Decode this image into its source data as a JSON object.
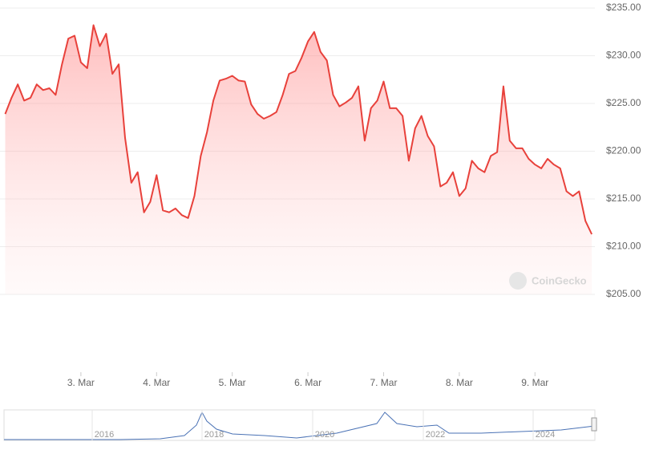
{
  "chart_data": {
    "type": "line",
    "x": [
      0,
      2,
      4,
      6,
      8,
      10,
      12,
      14,
      16,
      18,
      20,
      22,
      24,
      26,
      28,
      30,
      32,
      34,
      36,
      38,
      40,
      42,
      44,
      46,
      48,
      50,
      52,
      54,
      56,
      58,
      60,
      62,
      64,
      66,
      68,
      70,
      72,
      74,
      76,
      78,
      80,
      82,
      84,
      86,
      88,
      90,
      92,
      94,
      96,
      98,
      100,
      102,
      104,
      106,
      108,
      110,
      112,
      114,
      116,
      118,
      120,
      122,
      124,
      126,
      128,
      130,
      132,
      134,
      136,
      138,
      140,
      142,
      144,
      146,
      148,
      150,
      152,
      154,
      156,
      158,
      160,
      162,
      164,
      166,
      168,
      170,
      172,
      174,
      176,
      178,
      180,
      182,
      184,
      186
    ],
    "series": [
      {
        "color": "#e8413b",
        "values": [
          223.9,
          225.6,
          227.0,
          225.3,
          225.6,
          227.0,
          226.4,
          226.6,
          225.9,
          229.1,
          231.8,
          232.1,
          229.3,
          228.7,
          233.2,
          231.0,
          232.3,
          228.1,
          229.1,
          221.4,
          216.7,
          217.8,
          213.6,
          214.7,
          217.5,
          213.8,
          213.6,
          214.0,
          213.3,
          213.0,
          215.3,
          219.5,
          222.0,
          225.3,
          227.4,
          227.6,
          227.9,
          227.4,
          227.3,
          224.9,
          223.9,
          223.4,
          223.7,
          224.1,
          225.9,
          228.1,
          228.4,
          229.8,
          231.5,
          232.5,
          230.4,
          229.5,
          225.9,
          224.7,
          225.1,
          225.6,
          226.8,
          221.1,
          224.5,
          225.3,
          227.3,
          224.5,
          224.5,
          223.7,
          219.0,
          222.4,
          223.7,
          221.6,
          220.5,
          216.3,
          216.7,
          217.8,
          215.3,
          216.1,
          219.0,
          218.2,
          217.8,
          219.5,
          219.9,
          226.8,
          221.1,
          220.3,
          220.3,
          219.2,
          218.6,
          218.2,
          219.2,
          218.6,
          218.2,
          215.8,
          215.3,
          215.8,
          212.7,
          211.3
        ]
      }
    ],
    "xlim": [
      0,
      187
    ],
    "xticks": [
      {
        "value": 24,
        "label": "3. Mar"
      },
      {
        "value": 48,
        "label": "4. Mar"
      },
      {
        "value": 72,
        "label": "5. Mar"
      },
      {
        "value": 96,
        "label": "6. Mar"
      },
      {
        "value": 120,
        "label": "7. Mar"
      },
      {
        "value": 144,
        "label": "8. Mar"
      },
      {
        "value": 168,
        "label": "9. Mar"
      }
    ],
    "ylim": [
      205,
      235
    ],
    "yticks": [
      {
        "value": 205,
        "label": "$205.00"
      },
      {
        "value": 210,
        "label": "$210.00"
      },
      {
        "value": 215,
        "label": "$215.00"
      },
      {
        "value": 220,
        "label": "$220.00"
      },
      {
        "value": 225,
        "label": "$225.00"
      },
      {
        "value": 230,
        "label": "$230.00"
      },
      {
        "value": 235,
        "label": "$235.00"
      }
    ],
    "grid": true,
    "watermark": "CoinGecko",
    "navigator_labels": [
      "2016",
      "2018",
      "2020",
      "2022",
      "2024"
    ]
  }
}
